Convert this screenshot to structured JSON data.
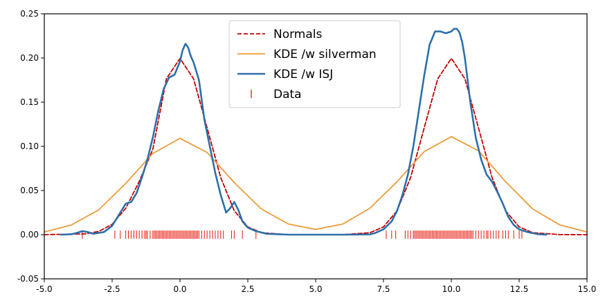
{
  "chart_data": {
    "type": "line",
    "title": "",
    "xlabel": "",
    "ylabel": "",
    "xlim": [
      -5.0,
      15.0
    ],
    "ylim": [
      -0.05,
      0.25
    ],
    "x_ticks": [
      -5.0,
      -2.5,
      0.0,
      2.5,
      5.0,
      7.5,
      10.0,
      12.5,
      15.0
    ],
    "x_tick_labels": [
      "-5.0",
      "-2.5",
      "0.0",
      "2.5",
      "5.0",
      "7.5",
      "10.0",
      "12.5",
      "15.0"
    ],
    "y_ticks": [
      -0.05,
      0.0,
      0.05,
      0.1,
      0.15,
      0.2,
      0.25
    ],
    "y_tick_labels": [
      "-0.05",
      "0.00",
      "0.05",
      "0.10",
      "0.15",
      "0.20",
      "0.25"
    ],
    "grid": false,
    "legend_position": "top-center",
    "series": [
      {
        "name": "Normals",
        "style": "dashed",
        "color": "#c00000",
        "x": [
          -5.0,
          -3.5,
          -3.0,
          -2.5,
          -2.0,
          -1.5,
          -1.0,
          -0.5,
          0.0,
          0.5,
          1.0,
          1.5,
          2.0,
          2.5,
          3.0,
          4.0,
          5.0,
          6.0,
          7.0,
          7.5,
          8.0,
          8.5,
          9.0,
          9.5,
          10.0,
          10.5,
          11.0,
          11.5,
          12.0,
          12.5,
          13.0,
          14.0,
          15.0
        ],
        "y": [
          0.0,
          0.0009,
          0.0036,
          0.0117,
          0.0298,
          0.0604,
          0.0967,
          0.1765,
          0.1995,
          0.1765,
          0.1209,
          0.0647,
          0.027,
          0.0088,
          0.0022,
          0.0001,
          0.0,
          0.0,
          0.0022,
          0.0088,
          0.027,
          0.0647,
          0.1209,
          0.1765,
          0.1995,
          0.1765,
          0.1209,
          0.0647,
          0.027,
          0.0088,
          0.0022,
          0.0001,
          0.0
        ]
      },
      {
        "name": "KDE /w silverman",
        "style": "solid",
        "color": "#ee9a3a",
        "x": [
          -5.0,
          -4.0,
          -3.0,
          -2.0,
          -1.0,
          0.0,
          1.0,
          2.0,
          3.0,
          4.0,
          5.0,
          6.0,
          7.0,
          8.0,
          9.0,
          10.0,
          11.0,
          12.0,
          13.0,
          14.0,
          15.0
        ],
        "y": [
          0.003,
          0.011,
          0.028,
          0.058,
          0.092,
          0.109,
          0.093,
          0.059,
          0.029,
          0.012,
          0.006,
          0.012,
          0.03,
          0.06,
          0.094,
          0.111,
          0.095,
          0.06,
          0.029,
          0.011,
          0.003
        ]
      },
      {
        "name": "KDE /w ISJ",
        "style": "solid",
        "color": "#2d6fa8",
        "x": [
          -4.4,
          -4.0,
          -3.8,
          -3.6,
          -3.4,
          -3.2,
          -2.8,
          -2.5,
          -2.2,
          -2.0,
          -1.8,
          -1.6,
          -1.4,
          -1.2,
          -1.0,
          -0.8,
          -0.6,
          -0.4,
          -0.2,
          0.0,
          0.1,
          0.2,
          0.3,
          0.4,
          0.5,
          0.7,
          0.9,
          1.1,
          1.3,
          1.5,
          1.7,
          1.85,
          2.0,
          2.15,
          2.3,
          2.5,
          2.8,
          3.2,
          4.0,
          5.0,
          6.0,
          7.0,
          7.2,
          7.5,
          7.8,
          8.0,
          8.2,
          8.4,
          8.6,
          8.8,
          9.0,
          9.2,
          9.4,
          9.6,
          9.8,
          10.0,
          10.1,
          10.2,
          10.3,
          10.4,
          10.5,
          10.7,
          10.9,
          11.1,
          11.3,
          11.5,
          11.7,
          11.9,
          12.1,
          12.3,
          12.5,
          12.8,
          13.2,
          13.5
        ],
        "y": [
          0.0,
          0.0005,
          0.002,
          0.004,
          0.003,
          0.001,
          0.003,
          0.01,
          0.025,
          0.035,
          0.037,
          0.047,
          0.065,
          0.085,
          0.11,
          0.14,
          0.165,
          0.178,
          0.181,
          0.196,
          0.209,
          0.216,
          0.212,
          0.202,
          0.195,
          0.175,
          0.13,
          0.1,
          0.07,
          0.045,
          0.025,
          0.03,
          0.037,
          0.028,
          0.015,
          0.008,
          0.004,
          0.001,
          0.0,
          0.0,
          0.0,
          0.0003,
          0.002,
          0.006,
          0.015,
          0.027,
          0.045,
          0.068,
          0.1,
          0.14,
          0.18,
          0.215,
          0.23,
          0.23,
          0.228,
          0.23,
          0.233,
          0.233,
          0.229,
          0.218,
          0.2,
          0.15,
          0.11,
          0.085,
          0.068,
          0.06,
          0.048,
          0.035,
          0.02,
          0.011,
          0.006,
          0.003,
          0.0005,
          0.0
        ]
      },
      {
        "name": "Data",
        "style": "rug",
        "color": "#e8281e",
        "y": 0.0,
        "x": [
          -3.6,
          -2.4,
          -2.2,
          -2.0,
          -1.9,
          -1.8,
          -1.7,
          -1.6,
          -1.5,
          -1.4,
          -1.3,
          -1.25,
          -1.2,
          -1.1,
          -1.0,
          -0.95,
          -0.9,
          -0.85,
          -0.8,
          -0.75,
          -0.7,
          -0.65,
          -0.6,
          -0.55,
          -0.5,
          -0.45,
          -0.4,
          -0.35,
          -0.3,
          -0.25,
          -0.2,
          -0.15,
          -0.1,
          -0.05,
          0.0,
          0.05,
          0.1,
          0.15,
          0.2,
          0.25,
          0.3,
          0.35,
          0.4,
          0.45,
          0.5,
          0.55,
          0.6,
          0.65,
          0.7,
          0.8,
          0.9,
          1.0,
          1.1,
          1.2,
          1.3,
          1.4,
          1.5,
          1.6,
          1.9,
          2.0,
          2.3,
          2.8,
          7.6,
          7.8,
          7.95,
          8.3,
          8.4,
          8.5,
          8.6,
          8.65,
          8.7,
          8.75,
          8.8,
          8.85,
          8.9,
          8.95,
          9.0,
          9.05,
          9.1,
          9.15,
          9.2,
          9.25,
          9.3,
          9.35,
          9.4,
          9.45,
          9.5,
          9.55,
          9.6,
          9.65,
          9.7,
          9.75,
          9.8,
          9.85,
          9.9,
          9.95,
          10.0,
          10.05,
          10.1,
          10.15,
          10.2,
          10.25,
          10.3,
          10.35,
          10.4,
          10.45,
          10.5,
          10.55,
          10.6,
          10.65,
          10.7,
          10.75,
          10.8,
          10.9,
          11.0,
          11.1,
          11.2,
          11.3,
          11.35,
          11.45,
          11.55,
          11.65,
          11.75,
          11.9,
          12.0,
          12.1,
          12.3,
          12.5,
          12.6
        ]
      }
    ]
  }
}
